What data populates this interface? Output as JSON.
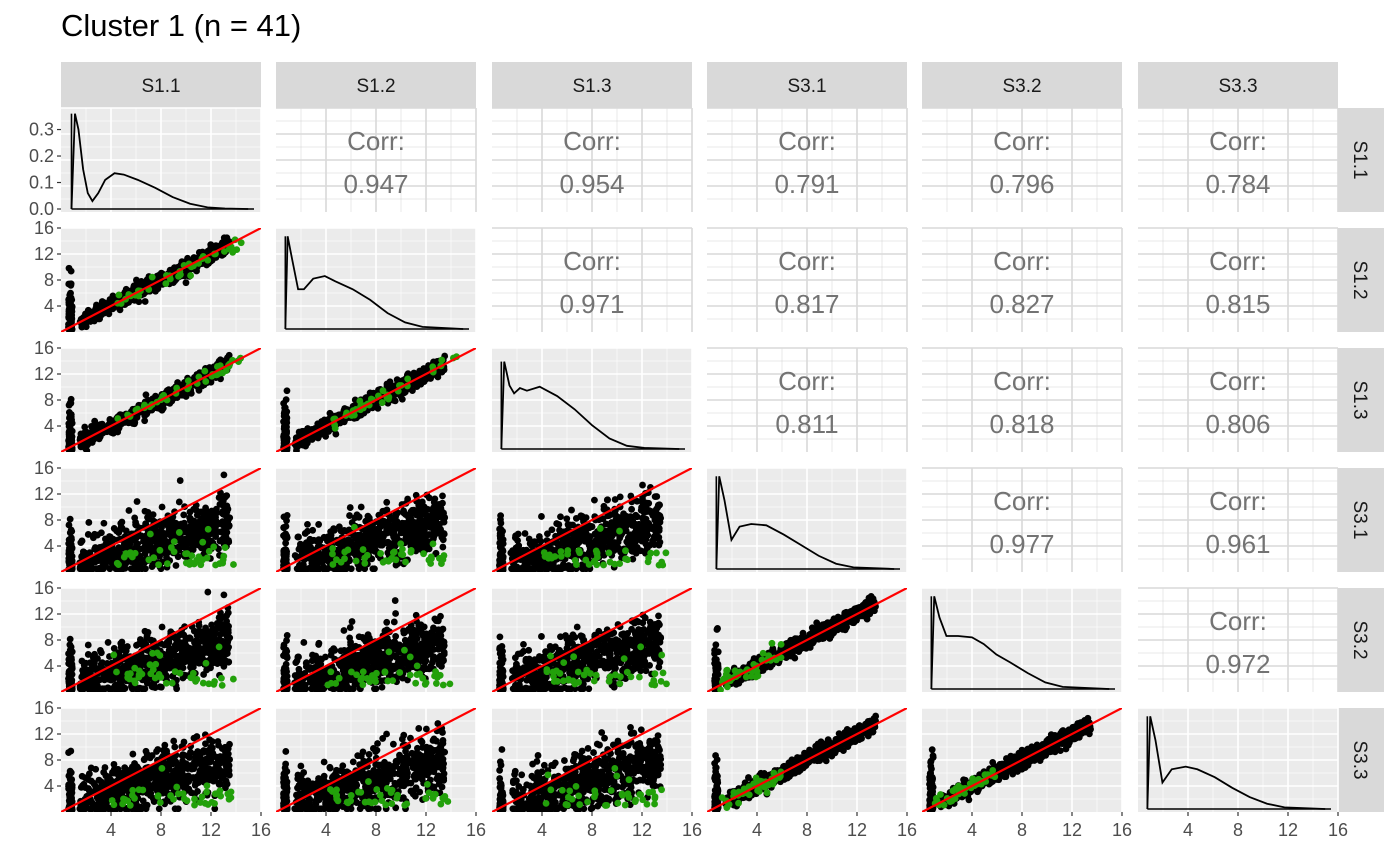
{
  "title": "Cluster 1 (n = 41)",
  "variables": [
    "S1.1",
    "S1.2",
    "S1.3",
    "S3.1",
    "S3.2",
    "S3.3"
  ],
  "corr_label": "Corr:",
  "chart_data": {
    "type": "scatter",
    "subtype": "pairs-matrix",
    "title": "Cluster 1 (n = 41)",
    "variables": [
      "S1.1",
      "S1.2",
      "S1.3",
      "S3.1",
      "S3.2",
      "S3.3"
    ],
    "axis_range": [
      0,
      16
    ],
    "x_ticks": [
      "4",
      "8",
      "12",
      "16"
    ],
    "y_ticks": [
      "4",
      "8",
      "12",
      "16"
    ],
    "density_y_ticks": [
      "0.0",
      "0.1",
      "0.2",
      "0.3"
    ],
    "density_ylim": [
      0,
      0.37
    ],
    "grid": true,
    "correlations": [
      {
        "row": "S1.1",
        "col": "S1.2",
        "value": "0.947"
      },
      {
        "row": "S1.1",
        "col": "S1.3",
        "value": "0.954"
      },
      {
        "row": "S1.1",
        "col": "S3.1",
        "value": "0.791"
      },
      {
        "row": "S1.1",
        "col": "S3.2",
        "value": "0.796"
      },
      {
        "row": "S1.1",
        "col": "S3.3",
        "value": "0.784"
      },
      {
        "row": "S1.2",
        "col": "S1.3",
        "value": "0.971"
      },
      {
        "row": "S1.2",
        "col": "S3.1",
        "value": "0.817"
      },
      {
        "row": "S1.2",
        "col": "S3.2",
        "value": "0.827"
      },
      {
        "row": "S1.2",
        "col": "S3.3",
        "value": "0.815"
      },
      {
        "row": "S1.3",
        "col": "S3.1",
        "value": "0.811"
      },
      {
        "row": "S1.3",
        "col": "S3.2",
        "value": "0.818"
      },
      {
        "row": "S1.3",
        "col": "S3.3",
        "value": "0.806"
      },
      {
        "row": "S3.1",
        "col": "S3.2",
        "value": "0.977"
      },
      {
        "row": "S3.1",
        "col": "S3.3",
        "value": "0.961"
      },
      {
        "row": "S3.2",
        "col": "S3.3",
        "value": "0.972"
      }
    ],
    "density_curves": {
      "S1.1": [
        [
          0.3,
          0.0
        ],
        [
          0.6,
          0.36
        ],
        [
          0.9,
          0.3
        ],
        [
          1.3,
          0.15
        ],
        [
          1.7,
          0.06
        ],
        [
          2.1,
          0.03
        ],
        [
          2.6,
          0.06
        ],
        [
          3.2,
          0.11
        ],
        [
          4.0,
          0.135
        ],
        [
          4.8,
          0.13
        ],
        [
          6.0,
          0.11
        ],
        [
          7.5,
          0.08
        ],
        [
          9.0,
          0.045
        ],
        [
          10.5,
          0.02
        ],
        [
          12.0,
          0.006
        ],
        [
          13.5,
          0.002
        ],
        [
          15.5,
          0.0
        ]
      ],
      "S1.2": [
        [
          0.2,
          0.0
        ],
        [
          0.4,
          0.35
        ],
        [
          0.8,
          0.26
        ],
        [
          1.3,
          0.15
        ],
        [
          1.8,
          0.15
        ],
        [
          2.6,
          0.19
        ],
        [
          3.6,
          0.2
        ],
        [
          4.5,
          0.18
        ],
        [
          6.0,
          0.15
        ],
        [
          7.5,
          0.11
        ],
        [
          9.0,
          0.06
        ],
        [
          10.5,
          0.025
        ],
        [
          12.0,
          0.008
        ],
        [
          15.5,
          0.0
        ]
      ],
      "S1.3": [
        [
          0.2,
          0.0
        ],
        [
          0.45,
          0.33
        ],
        [
          0.9,
          0.24
        ],
        [
          1.3,
          0.21
        ],
        [
          1.8,
          0.23
        ],
        [
          2.4,
          0.22
        ],
        [
          3.5,
          0.235
        ],
        [
          5.0,
          0.2
        ],
        [
          6.5,
          0.15
        ],
        [
          8.0,
          0.09
        ],
        [
          9.5,
          0.04
        ],
        [
          11.0,
          0.012
        ],
        [
          12.5,
          0.004
        ],
        [
          15.5,
          0.0
        ]
      ],
      "S3.1": [
        [
          0.2,
          0.0
        ],
        [
          0.45,
          0.35
        ],
        [
          0.9,
          0.26
        ],
        [
          1.5,
          0.11
        ],
        [
          2.2,
          0.16
        ],
        [
          3.2,
          0.17
        ],
        [
          4.5,
          0.165
        ],
        [
          6.0,
          0.13
        ],
        [
          7.5,
          0.09
        ],
        [
          9.0,
          0.05
        ],
        [
          10.5,
          0.02
        ],
        [
          12.0,
          0.006
        ],
        [
          15.5,
          0.0
        ]
      ],
      "S3.2": [
        [
          0.2,
          0.0
        ],
        [
          0.45,
          0.35
        ],
        [
          0.9,
          0.27
        ],
        [
          1.5,
          0.2
        ],
        [
          2.5,
          0.2
        ],
        [
          3.7,
          0.195
        ],
        [
          4.7,
          0.17
        ],
        [
          5.8,
          0.13
        ],
        [
          7.0,
          0.1
        ],
        [
          8.5,
          0.06
        ],
        [
          10.0,
          0.025
        ],
        [
          11.5,
          0.008
        ],
        [
          15.5,
          0.0
        ]
      ],
      "S3.3": [
        [
          0.2,
          0.0
        ],
        [
          0.45,
          0.35
        ],
        [
          0.9,
          0.26
        ],
        [
          1.5,
          0.1
        ],
        [
          2.3,
          0.15
        ],
        [
          3.5,
          0.16
        ],
        [
          4.5,
          0.15
        ],
        [
          6.0,
          0.12
        ],
        [
          7.5,
          0.08
        ],
        [
          9.0,
          0.045
        ],
        [
          10.5,
          0.02
        ],
        [
          12.0,
          0.006
        ],
        [
          15.5,
          0.0
        ]
      ]
    },
    "fit_line": {
      "slope": 1,
      "intercept": 0,
      "color": "#ff0000"
    },
    "point_colors": {
      "main": "#000000",
      "highlight": "#22a00a"
    }
  },
  "colors": {
    "panel_bg": "#ebebeb",
    "grid_major": "#ffffff",
    "strip_bg": "#d9d9d9",
    "corr_text": "#737373",
    "corr_panel_grid": "#d9d9d9",
    "axis_text": "#4d4d4d"
  }
}
